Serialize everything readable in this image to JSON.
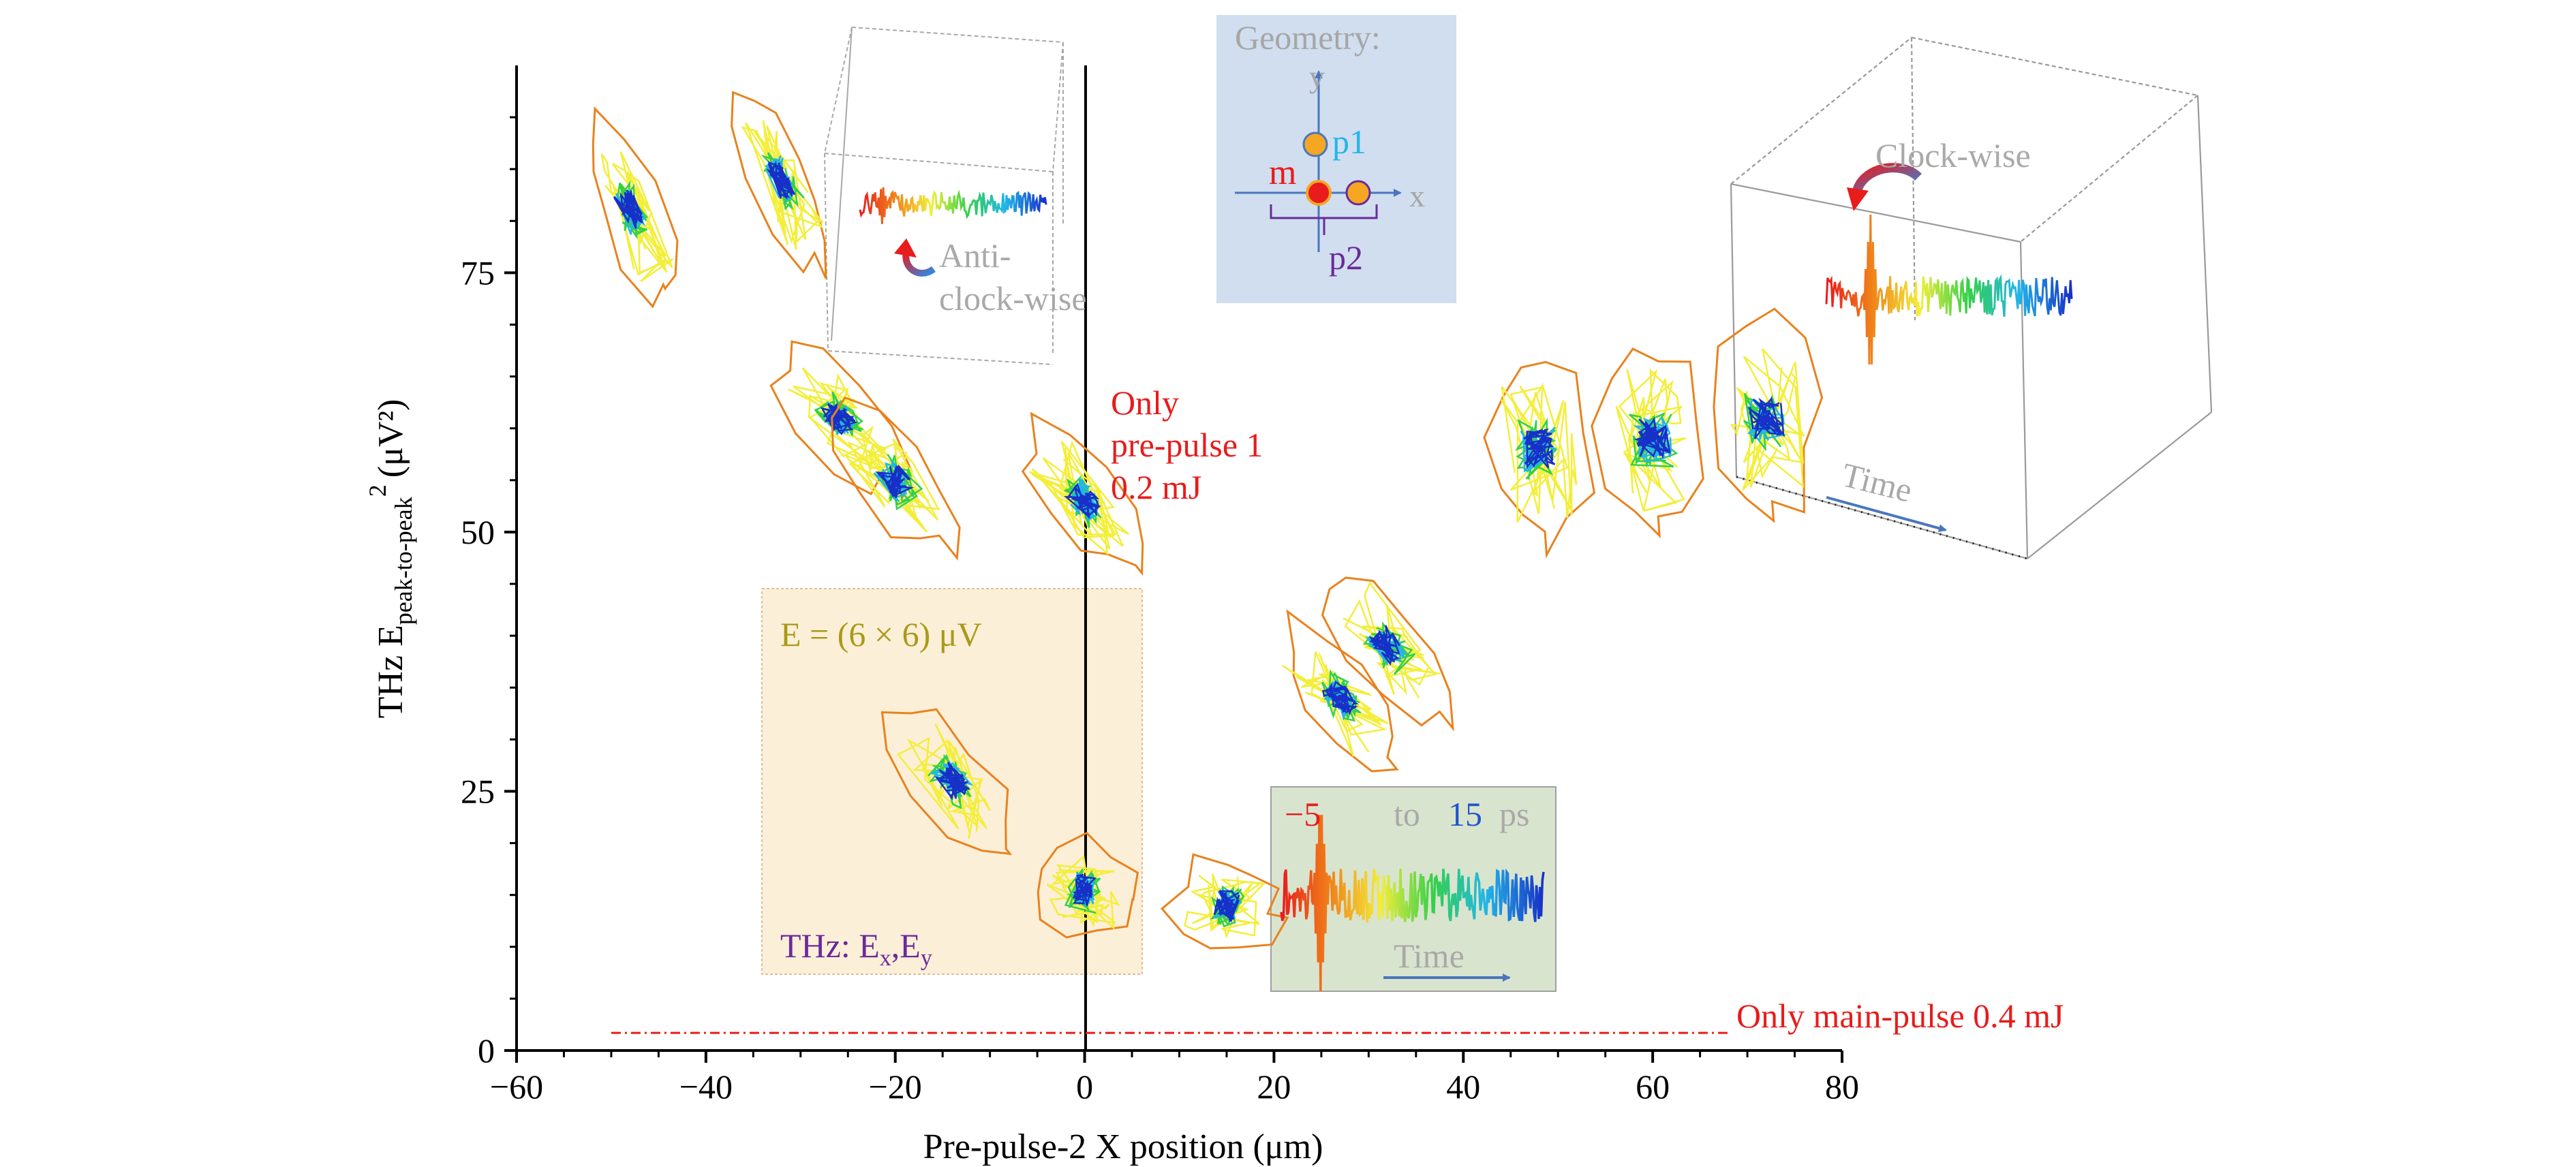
{
  "chart_data": {
    "type": "scatter",
    "xlabel": "Pre-pulse-2 X position (μm)",
    "ylabel_main": "THz E",
    "ylabel_sub": "peak-to-peak",
    "ylabel_sup": "2",
    "ylabel_unit": "(μV²)",
    "xlim": [
      -60,
      80
    ],
    "ylim": [
      0,
      95
    ],
    "x_ticks": [
      -60,
      -40,
      -20,
      0,
      20,
      40,
      60,
      80
    ],
    "x_tick_labels": [
      "−60",
      "−40",
      "−20",
      "0",
      "20",
      "40",
      "60",
      "80"
    ],
    "y_ticks": [
      0,
      25,
      50,
      75
    ],
    "y_tick_labels": [
      "0",
      "25",
      "50",
      "75"
    ],
    "clusters": [
      {
        "x": -48,
        "y": 81
      },
      {
        "x": -32,
        "y": 84
      },
      {
        "x": -26,
        "y": 61
      },
      {
        "x": -20,
        "y": 55
      },
      {
        "x": -14,
        "y": 26
      },
      {
        "x": 0,
        "y": 53
      },
      {
        "x": 0,
        "y": 15.5
      },
      {
        "x": 15,
        "y": 14
      },
      {
        "x": 27,
        "y": 34
      },
      {
        "x": 32,
        "y": 39
      },
      {
        "x": 48,
        "y": 58
      },
      {
        "x": 60,
        "y": 59
      },
      {
        "x": 72,
        "y": 61
      }
    ],
    "baseline": {
      "y": 1.7,
      "x_range": [
        -50,
        68
      ]
    },
    "vertical_line_x": 0,
    "annotations": {
      "only_pre_pulse_1_line1": "Only",
      "only_pre_pulse_1_line2": "pre-pulse 1",
      "only_pre_pulse_1_line3": "0.2 mJ",
      "only_main_pulse": "Only main-pulse 0.4 mJ",
      "e_scale": "E = (6 × 6) μV",
      "thz_fields_prefix": "THz: E",
      "thz_fields_sub_x": "x",
      "thz_fields_sep": ",E",
      "thz_fields_sub_y": "y",
      "anti_clock_line1": "Anti-",
      "anti_clock_line2": "clock-wise",
      "clock_wise": "Clock-wise",
      "time_3d": "Time",
      "time_inset": "Time",
      "t_start": "−5",
      "t_to": "to",
      "t_end": "15",
      "t_unit": "ps"
    },
    "geometry_inset": {
      "title": "Geometry:",
      "axis_y": "y",
      "axis_x": "x",
      "label_m": "m",
      "label_p1": "p1",
      "label_p2": "p2"
    }
  },
  "colors": {
    "orange": "#e8821e",
    "yellow": "#f3ee3a",
    "green": "#33d04a",
    "cyan": "#22b6e8",
    "blue": "#1730c8",
    "red": "#e81c1c",
    "gray_text": "#a9a9a9",
    "purple": "#6a2a9a",
    "gold_text": "#a99a18",
    "axis_blue": "#4a76bd"
  }
}
